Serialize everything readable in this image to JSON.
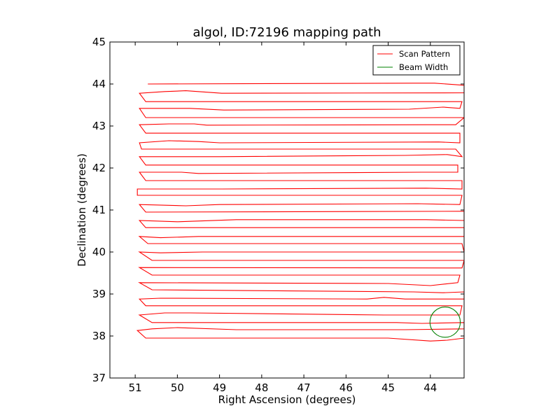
{
  "chart_data": {
    "type": "line",
    "title": "algol, ID:72196 mapping path",
    "xlabel": "Right Ascension (degrees)",
    "ylabel": "Declination (degrees)",
    "xlim": [
      51.6,
      43.2
    ],
    "ylim": [
      37,
      45
    ],
    "x_inverted": true,
    "xticks": [
      51,
      50,
      49,
      48,
      47,
      46,
      45,
      44
    ],
    "yticks": [
      37,
      38,
      39,
      40,
      41,
      42,
      43,
      44,
      45
    ],
    "grid": false,
    "legend": {
      "position": "top-right",
      "entries": [
        {
          "name": "Scan Pattern",
          "color": "#ff0000"
        },
        {
          "name": "Beam Width",
          "color": "#008000"
        }
      ]
    },
    "series": [
      {
        "name": "Scan Pattern",
        "color": "#ff0000",
        "type": "line",
        "rows": [
          {
            "left": 50.7,
            "right": 43.2,
            "y_start": 44.0,
            "y_end": 43.97
          },
          {
            "left": 50.9,
            "right": 43.2,
            "y_start": 43.78,
            "y_end": 43.79
          },
          {
            "left": 50.75,
            "right": 43.25,
            "y_start": 43.58,
            "y_end": 43.58
          },
          {
            "left": 50.9,
            "right": 43.3,
            "y_start": 43.42,
            "y_end": 43.42
          },
          {
            "left": 50.75,
            "right": 43.2,
            "y_start": 43.2,
            "y_end": 43.2
          },
          {
            "left": 50.9,
            "right": 43.4,
            "y_start": 43.03,
            "y_end": 43.03
          },
          {
            "left": 50.75,
            "right": 43.3,
            "y_start": 42.83,
            "y_end": 42.83
          },
          {
            "left": 50.9,
            "right": 43.25,
            "y_start": 42.6,
            "y_end": 42.6
          },
          {
            "left": 50.85,
            "right": 43.4,
            "y_start": 42.45,
            "y_end": 42.45
          },
          {
            "left": 50.9,
            "right": 43.25,
            "y_start": 42.27,
            "y_end": 42.27
          },
          {
            "left": 50.75,
            "right": 43.35,
            "y_start": 42.07,
            "y_end": 42.07
          },
          {
            "left": 50.9,
            "right": 43.35,
            "y_start": 41.9,
            "y_end": 41.9
          },
          {
            "left": 50.75,
            "right": 43.25,
            "y_start": 41.7,
            "y_end": 41.7
          },
          {
            "left": 50.95,
            "right": 43.25,
            "y_start": 41.5,
            "y_end": 41.5
          },
          {
            "left": 50.95,
            "right": 43.25,
            "y_start": 41.35,
            "y_end": 41.35
          },
          {
            "left": 50.9,
            "right": 43.3,
            "y_start": 41.13,
            "y_end": 41.13
          },
          {
            "left": 50.75,
            "right": 43.2,
            "y_start": 40.95,
            "y_end": 40.97
          },
          {
            "left": 50.9,
            "right": 43.2,
            "y_start": 40.75,
            "y_end": 40.75
          },
          {
            "left": 50.75,
            "right": 43.2,
            "y_start": 40.58,
            "y_end": 40.58
          },
          {
            "left": 50.9,
            "right": 43.2,
            "y_start": 40.37,
            "y_end": 40.37
          },
          {
            "left": 50.7,
            "right": 43.25,
            "y_start": 40.2,
            "y_end": 40.2
          },
          {
            "left": 50.9,
            "right": 43.2,
            "y_start": 40.0,
            "y_end": 40.0
          },
          {
            "left": 50.6,
            "right": 43.2,
            "y_start": 39.8,
            "y_end": 39.8
          },
          {
            "left": 50.9,
            "right": 43.25,
            "y_start": 39.63,
            "y_end": 39.62
          },
          {
            "left": 50.6,
            "right": 43.3,
            "y_start": 39.45,
            "y_end": 39.45
          },
          {
            "left": 50.9,
            "right": 43.35,
            "y_start": 39.27,
            "y_end": 39.27
          },
          {
            "left": 50.6,
            "right": 43.2,
            "y_start": 39.1,
            "y_end": 39.05
          },
          {
            "left": 50.9,
            "right": 43.2,
            "y_start": 38.88,
            "y_end": 38.88
          },
          {
            "left": 50.75,
            "right": 43.25,
            "y_start": 38.72,
            "y_end": 38.72
          },
          {
            "left": 50.9,
            "right": 43.3,
            "y_start": 38.5,
            "y_end": 38.5
          },
          {
            "left": 50.6,
            "right": 43.2,
            "y_start": 38.32,
            "y_end": 38.32
          },
          {
            "left": 50.95,
            "right": 43.2,
            "y_start": 38.13,
            "y_end": 38.17
          },
          {
            "left": 50.75,
            "right": 43.2,
            "y_start": 37.95,
            "y_end": 37.95
          }
        ],
        "row_bumps": [
          [
            [
              50.7,
              44.0
            ],
            [
              44.4,
              44.02
            ],
            [
              43.9,
              44.02
            ],
            [
              43.2,
              43.97
            ]
          ],
          [
            [
              50.9,
              43.78
            ],
            [
              50.3,
              43.82
            ],
            [
              49.8,
              43.84
            ],
            [
              48.95,
              43.78
            ],
            [
              43.2,
              43.79
            ]
          ],
          [
            [
              50.9,
              43.42
            ],
            [
              49.7,
              43.42
            ],
            [
              48.9,
              43.38
            ],
            [
              44.5,
              43.4
            ],
            [
              43.7,
              43.45
            ],
            [
              43.3,
              43.42
            ]
          ],
          [
            [
              50.9,
              43.03
            ],
            [
              50.2,
              43.05
            ],
            [
              49.6,
              43.05
            ],
            [
              49.3,
              43.02
            ],
            [
              44.1,
              43.03
            ],
            [
              43.4,
              43.03
            ]
          ],
          [
            [
              50.9,
              42.6
            ],
            [
              50.2,
              42.65
            ],
            [
              49.5,
              42.63
            ],
            [
              49.0,
              42.6
            ],
            [
              43.8,
              42.62
            ],
            [
              43.3,
              42.6
            ]
          ],
          [
            [
              50.9,
              42.27
            ],
            [
              49.0,
              42.27
            ],
            [
              44.6,
              42.3
            ],
            [
              43.6,
              42.32
            ],
            [
              43.25,
              42.27
            ]
          ],
          [
            [
              50.9,
              41.9
            ],
            [
              49.9,
              41.9
            ],
            [
              49.5,
              41.87
            ],
            [
              44.2,
              41.9
            ],
            [
              43.35,
              41.9
            ]
          ],
          [
            [
              50.95,
              41.5
            ],
            [
              49.4,
              41.5
            ],
            [
              48.95,
              41.5
            ],
            [
              44.1,
              41.52
            ],
            [
              43.25,
              41.5
            ]
          ],
          [
            [
              50.9,
              41.13
            ],
            [
              49.8,
              41.1
            ],
            [
              49.0,
              41.13
            ],
            [
              44.3,
              41.15
            ],
            [
              43.3,
              41.13
            ]
          ],
          [
            [
              50.9,
              40.75
            ],
            [
              50.0,
              40.72
            ],
            [
              48.6,
              40.77
            ],
            [
              44.1,
              40.77
            ],
            [
              43.2,
              40.75
            ]
          ],
          [
            [
              50.9,
              40.37
            ],
            [
              50.4,
              40.34
            ],
            [
              49.5,
              40.37
            ],
            [
              43.2,
              40.37
            ]
          ],
          [
            [
              50.9,
              40.0
            ],
            [
              50.4,
              39.98
            ],
            [
              49.4,
              40.0
            ],
            [
              43.2,
              40.0
            ]
          ],
          [
            [
              50.9,
              39.27
            ],
            [
              45.0,
              39.25
            ],
            [
              44.0,
              39.2
            ],
            [
              43.35,
              39.27
            ]
          ],
          [
            [
              50.6,
              39.1
            ],
            [
              44.4,
              39.05
            ],
            [
              43.7,
              39.03
            ],
            [
              43.2,
              39.05
            ]
          ],
          [
            [
              50.9,
              38.88
            ],
            [
              50.4,
              38.9
            ],
            [
              45.5,
              38.88
            ],
            [
              45.1,
              38.92
            ],
            [
              44.6,
              38.88
            ],
            [
              43.2,
              38.88
            ]
          ],
          [
            [
              50.9,
              38.5
            ],
            [
              50.3,
              38.55
            ],
            [
              49.7,
              38.55
            ],
            [
              45.1,
              38.5
            ],
            [
              43.3,
              38.5
            ]
          ],
          [
            [
              50.6,
              38.32
            ],
            [
              44.8,
              38.32
            ],
            [
              44.2,
              38.3
            ],
            [
              43.2,
              38.32
            ]
          ],
          [
            [
              50.95,
              38.13
            ],
            [
              50.6,
              38.17
            ],
            [
              50.0,
              38.2
            ],
            [
              48.6,
              38.15
            ],
            [
              44.6,
              38.15
            ],
            [
              43.2,
              38.17
            ]
          ],
          [
            [
              50.75,
              37.95
            ],
            [
              45.0,
              37.95
            ],
            [
              44.0,
              37.88
            ],
            [
              43.6,
              37.9
            ],
            [
              43.2,
              37.95
            ]
          ]
        ]
      },
      {
        "name": "Beam Width",
        "color": "#008000",
        "type": "circle",
        "center": [
          43.65,
          38.33
        ],
        "radius_deg": 0.36
      }
    ]
  }
}
